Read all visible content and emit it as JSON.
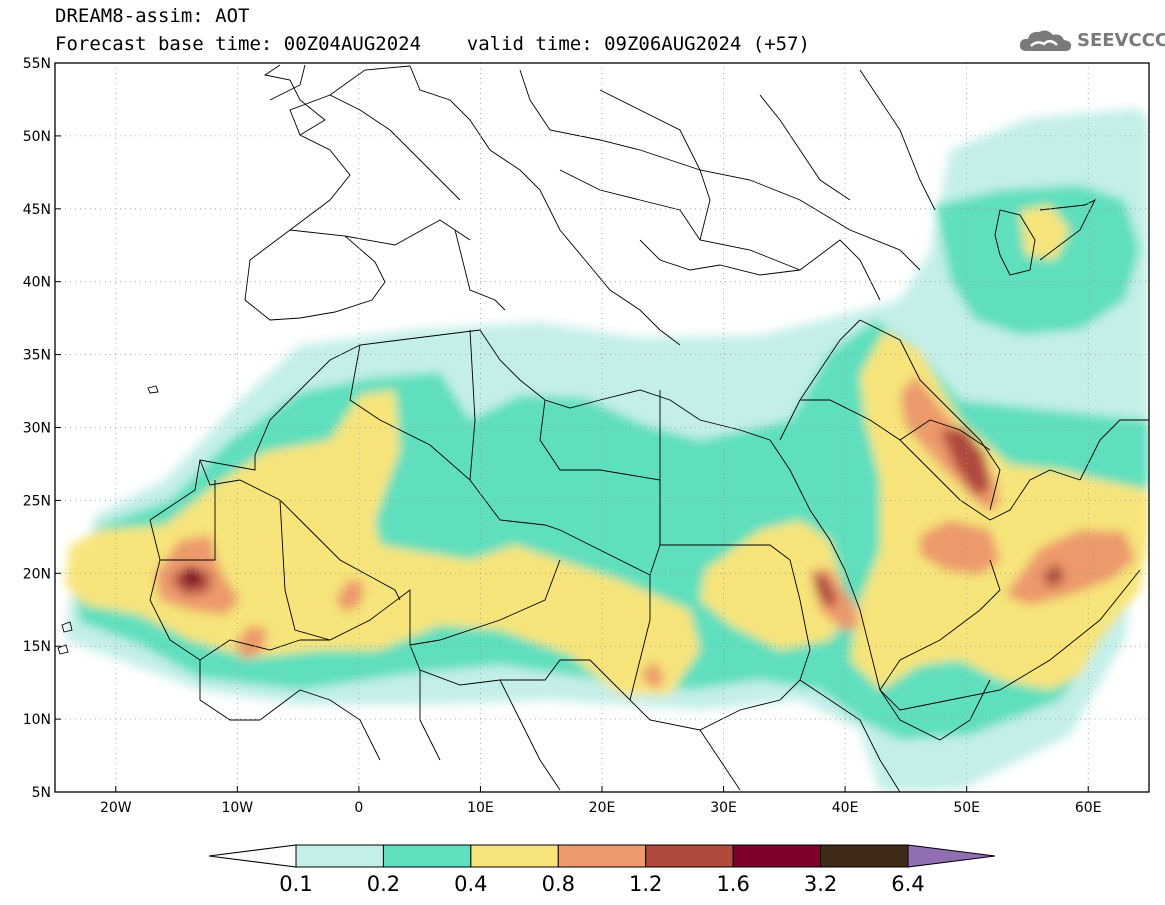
{
  "title": {
    "line1": "DREAM8-assim: AOT",
    "line2": "Forecast base time: 00Z04AUG2024    valid time: 09Z06AUG2024 (+57)"
  },
  "logo": {
    "text": "SEEVCCC",
    "icon": "cloud-icon",
    "color": "#7a7a7a"
  },
  "map": {
    "lat_labels": [
      "55N",
      "50N",
      "45N",
      "40N",
      "35N",
      "30N",
      "25N",
      "20N",
      "15N",
      "10N",
      "5N"
    ],
    "lon_labels": [
      "20W",
      "10W",
      "0",
      "10E",
      "20E",
      "30E",
      "40E",
      "50E",
      "60E"
    ],
    "lat_range": [
      5,
      55
    ],
    "lon_range": [
      -25,
      65
    ],
    "grid": "dotted"
  },
  "colorbar": {
    "labels": [
      "0.1",
      "0.2",
      "0.4",
      "0.8",
      "1.2",
      "1.6",
      "3.2",
      "6.4"
    ],
    "colors": [
      "#ffffff",
      "#c4efe9",
      "#5fdfbd",
      "#f7e47a",
      "#ec9a6c",
      "#b04a3d",
      "#7c0028",
      "#3f2a17",
      "#8f6fb2"
    ]
  }
}
